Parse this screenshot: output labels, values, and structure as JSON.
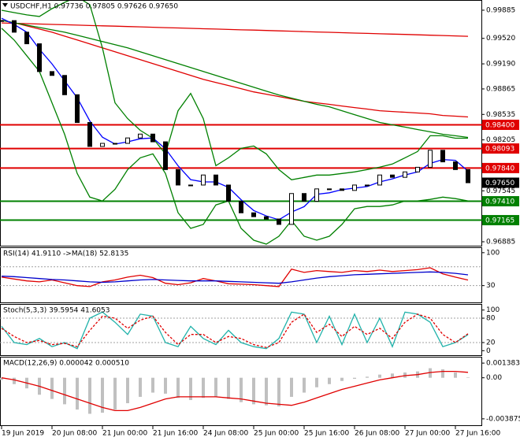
{
  "chart_data": [
    {
      "type": "candlestick",
      "title": "USDCHF,H1  0.97736 0.97805 0.97626 0.97650",
      "categories": [
        "19 Jun 2019",
        null,
        null,
        null,
        "20 Jun 08:00",
        null,
        null,
        null,
        "21 Jun 00:00",
        null,
        null,
        null,
        "21 Jun 16:00",
        null,
        null,
        null,
        "24 Jun 08:00",
        null,
        null,
        null,
        "25 Jun 00:00",
        null,
        null,
        null,
        "25 Jun 16:00",
        null,
        null,
        null,
        "26 Jun 08:00",
        null,
        null,
        null,
        "27 Jun 00:00",
        null,
        null,
        null,
        "27 Jun 16:00",
        null
      ],
      "values": [
        0.9975,
        0.996,
        0.9945,
        0.9909,
        0.9904,
        0.9879,
        0.9843,
        0.9812,
        0.9816,
        0.9816,
        0.9823,
        0.9828,
        0.9818,
        0.9782,
        0.9762,
        0.9762,
        0.9775,
        0.9762,
        0.9741,
        0.9726,
        0.9721,
        0.9718,
        0.9711,
        0.9751,
        0.9741,
        0.9757,
        0.9757,
        0.9755,
        0.9762,
        0.9762,
        0.9775,
        0.9772,
        0.9779,
        0.9785,
        0.9807,
        0.9792,
        0.9782,
        0.9765
      ],
      "series": [
        {
          "color": "#e00000",
          "values": [
            0.9972,
            0.99715,
            0.99711,
            0.99706,
            0.99701,
            0.99697,
            0.99692,
            0.99687,
            0.99683,
            0.99678,
            0.99673,
            0.99669,
            0.99664,
            0.99659,
            0.99655,
            0.9965,
            0.99645,
            0.99641,
            0.99636,
            0.99631,
            0.99627,
            0.99622,
            0.99617,
            0.99613,
            0.99608,
            0.99603,
            0.99599,
            0.99594,
            0.99589,
            0.99585,
            0.9958,
            0.99575,
            0.99571,
            0.99566,
            0.99561,
            0.99557,
            0.99552,
            0.99547
          ]
        },
        {
          "color": "#e00000",
          "values": [
            0.99753,
            0.99722,
            0.99682,
            0.99641,
            0.996,
            0.99549,
            0.99499,
            0.99448,
            0.99397,
            0.99346,
            0.99295,
            0.99244,
            0.99193,
            0.99143,
            0.99092,
            0.99041,
            0.9899,
            0.98949,
            0.98909,
            0.98868,
            0.98827,
            0.98797,
            0.98766,
            0.98736,
            0.98705,
            0.98685,
            0.98665,
            0.98644,
            0.98624,
            0.98604,
            0.98583,
            0.98573,
            0.98563,
            0.98553,
            0.98543,
            0.98522,
            0.98512,
            0.98502
          ]
        },
        {
          "color": "#008000",
          "values": [
            0.99753,
            0.99722,
            0.99692,
            0.99661,
            0.99631,
            0.996,
            0.9956,
            0.99519,
            0.99478,
            0.99438,
            0.99397,
            0.99346,
            0.99295,
            0.99244,
            0.99193,
            0.99143,
            0.99092,
            0.99041,
            0.9899,
            0.98939,
            0.98888,
            0.98837,
            0.98787,
            0.98746,
            0.98705,
            0.98665,
            0.98634,
            0.98583,
            0.98532,
            0.98482,
            0.98431,
            0.984,
            0.9837,
            0.98339,
            0.98309,
            0.98278,
            0.98258,
            0.98237
          ]
        },
        {
          "color": "#008000",
          "values": [
            0.99885,
            0.99854,
            0.99824,
            0.99804,
            0.99905,
            0.99987,
            1.00058,
            0.99956,
            0.99397,
            0.98685,
            0.98481,
            0.98329,
            0.98227,
            0.98024,
            0.98583,
            0.98807,
            0.98481,
            0.97871,
            0.97973,
            0.98095,
            0.98126,
            0.98024,
            0.9782,
            0.97688,
            0.97719,
            0.97749,
            0.97749,
            0.9777,
            0.9779,
            0.9782,
            0.97851,
            0.97892,
            0.97973,
            0.98054,
            0.98258,
            0.98258,
            0.98227,
            0.98227
          ]
        },
        {
          "color": "#008000",
          "values": [
            0.99651,
            0.99498,
            0.99295,
            0.99092,
            0.98685,
            0.98278,
            0.9777,
            0.97464,
            0.97414,
            0.97566,
            0.9782,
            0.97973,
            0.98024,
            0.9777,
            0.97261,
            0.97058,
            0.97109,
            0.97363,
            0.97414,
            0.97058,
            0.96905,
            0.96854,
            0.96956,
            0.97159,
            0.96956,
            0.96905,
            0.96956,
            0.97109,
            0.97312,
            0.97342,
            0.97342,
            0.97363,
            0.97414,
            0.97414,
            0.97434,
            0.97464,
            0.97444,
            0.97414
          ]
        },
        {
          "color": "#0000ff",
          "values": [
            0.9978,
            0.997,
            0.996,
            0.9938,
            0.9919,
            0.9897,
            0.9875,
            0.9845,
            0.9824,
            0.9815,
            0.9818,
            0.9822,
            0.9823,
            0.9809,
            0.9787,
            0.9769,
            0.9766,
            0.9766,
            0.9759,
            0.9743,
            0.9729,
            0.9722,
            0.9717,
            0.9727,
            0.9734,
            0.975,
            0.9752,
            0.9756,
            0.9758,
            0.976,
            0.9766,
            0.977,
            0.9775,
            0.9779,
            0.979,
            0.9795,
            0.9794,
            0.978
          ]
        }
      ],
      "levels": [
        {
          "value": 0.984,
          "label": "0.98400",
          "color": "#e00000"
        },
        {
          "value": 0.98093,
          "label": "0.98093",
          "color": "#e00000"
        },
        {
          "value": 0.9784,
          "label": "0.97840",
          "color": "#e00000"
        },
        {
          "value": 0.9741,
          "label": "0.97410",
          "color": "#008000"
        },
        {
          "value": 0.97165,
          "label": "0.97165",
          "color": "#008000"
        }
      ],
      "last_price": {
        "value": 0.9765,
        "label": "0.97650",
        "color": "#000000"
      },
      "ylim": [
        0.96834,
        1.00007
      ],
      "yticks": [
        0.99885,
        {
          "value": 0.9952,
          "label": "0.99520"
        },
        {
          "value": 0.9919,
          "label": "0.99190"
        },
        0.98865,
        0.98535,
        0.98205,
        0.97545,
        0.96885
      ]
    },
    {
      "type": "line",
      "title": "RSI(14) 41.9110 ->MA(18) 52.8135",
      "series": [
        {
          "color": "#e00000",
          "values": [
            48,
            44,
            40,
            38,
            42,
            36,
            30,
            28,
            38,
            42,
            48,
            52,
            47,
            35,
            32,
            36,
            45,
            40,
            34,
            33,
            32,
            30,
            28,
            65,
            58,
            62,
            60,
            58,
            62,
            60,
            63,
            60,
            62,
            64,
            68,
            55,
            48,
            41.911
          ]
        },
        {
          "color": "#0000cc",
          "values": [
            50,
            49,
            47,
            45,
            43,
            42,
            40,
            38,
            37,
            38,
            40,
            42,
            43,
            42,
            41,
            40,
            40,
            40,
            39,
            38,
            37,
            36,
            35,
            38,
            42,
            46,
            49,
            51,
            53,
            54,
            55,
            56,
            57,
            58,
            59,
            58,
            56,
            52.8135
          ]
        }
      ],
      "levels": [
        70,
        30
      ],
      "ylim": [
        -5.7,
        109.8
      ],
      "yticks": [
        100,
        30
      ]
    },
    {
      "type": "line",
      "title": "Stoch(5,3,3) 39.5954 41.6053",
      "series": [
        {
          "color": "#20b2aa",
          "values": [
            60,
            20,
            15,
            30,
            10,
            20,
            5,
            80,
            95,
            70,
            40,
            90,
            85,
            20,
            10,
            60,
            30,
            15,
            50,
            20,
            10,
            5,
            30,
            95,
            90,
            20,
            85,
            15,
            90,
            20,
            80,
            10,
            95,
            90,
            70,
            10,
            20,
            39.5954
          ]
        },
        {
          "color": "#e00000",
          "dashed": true,
          "values": [
            55,
            35,
            20,
            25,
            15,
            18,
            10,
            50,
            85,
            80,
            55,
            75,
            85,
            45,
            15,
            40,
            40,
            20,
            35,
            30,
            15,
            8,
            20,
            70,
            90,
            45,
            65,
            35,
            60,
            40,
            55,
            30,
            70,
            90,
            80,
            40,
            20,
            41.6053
          ]
        }
      ],
      "levels": [
        80,
        20
      ],
      "ylim": [
        -11,
        113
      ],
      "yticks": [
        100,
        80,
        20,
        0
      ]
    },
    {
      "type": "macd",
      "title": "MACD(12,26,9) 0.000042 0.000510",
      "color": "#c0c0c0",
      "values": [
        -0.0002,
        -0.0006,
        -0.001,
        -0.0016,
        -0.002,
        -0.0025,
        -0.003,
        -0.0034,
        -0.0033,
        -0.003,
        -0.0024,
        -0.0018,
        -0.0014,
        -0.0015,
        -0.0019,
        -0.0021,
        -0.0019,
        -0.0018,
        -0.002,
        -0.0023,
        -0.0025,
        -0.0026,
        -0.0027,
        -0.0018,
        -0.0014,
        -0.0009,
        -0.0006,
        -0.0003,
        -0.0001,
        0.0001,
        0.0003,
        0.0004,
        0.0005,
        0.0006,
        0.0009,
        0.0008,
        0.0005,
        4.2e-05
      ],
      "series": [
        {
          "color": "#e00000",
          "values": [
            0,
            -0.0002,
            -0.0005,
            -0.0008,
            -0.0012,
            -0.0016,
            -0.002,
            -0.0024,
            -0.0028,
            -0.0031,
            -0.0031,
            -0.0028,
            -0.0024,
            -0.002,
            -0.0018,
            -0.0018,
            -0.0018,
            -0.0018,
            -0.0019,
            -0.002,
            -0.0022,
            -0.0024,
            -0.0025,
            -0.0026,
            -0.0023,
            -0.0019,
            -0.0015,
            -0.0011,
            -0.0008,
            -0.0005,
            -0.0002,
            0,
            0.0002,
            0.0003,
            0.0005,
            0.0006,
            0.0006,
            0.00051
          ]
        }
      ],
      "ylim": [
        -0.00448,
        0.00191
      ],
      "yticks": [
        0.001383,
        {
          "value": 0,
          "label": "0.00"
        },
        -0.003875
      ]
    }
  ]
}
